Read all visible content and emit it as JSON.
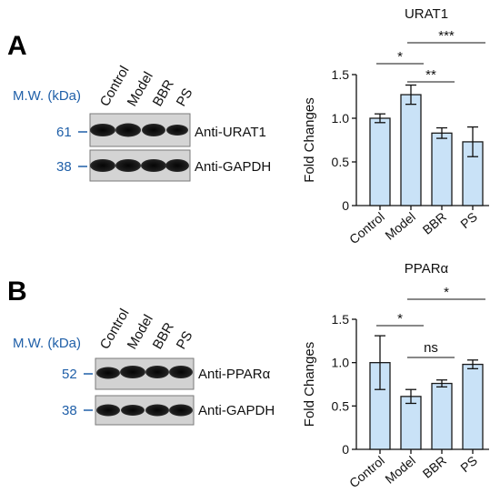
{
  "panels": [
    {
      "letter": "A",
      "blot": {
        "mw_label": "M.W. (kDa)",
        "lanes": [
          "Control",
          "Model",
          "BBR",
          "PS"
        ],
        "rows": [
          {
            "mw": "61",
            "antibody": "Anti-URAT1"
          },
          {
            "mw": "38",
            "antibody": "Anti-GAPDH"
          }
        ]
      }
    },
    {
      "letter": "B",
      "blot": {
        "mw_label": "M.W. (kDa)",
        "lanes": [
          "Control",
          "Model",
          "BBR",
          "PS"
        ],
        "rows": [
          {
            "mw": "52",
            "antibody": "Anti-PPARα"
          },
          {
            "mw": "38",
            "antibody": "Anti-GAPDH"
          }
        ]
      }
    }
  ],
  "colors": {
    "bar_fill": "#c9e2f7",
    "bar_stroke": "#1a1a1a",
    "mw_text": "#1f5fa8"
  },
  "chart_data": [
    {
      "type": "bar",
      "title": "URAT1",
      "ylabel": "Fold Changes",
      "categories": [
        "Control",
        "Model",
        "BBR",
        "PS"
      ],
      "values": [
        1.0,
        1.27,
        0.83,
        0.73
      ],
      "errors": [
        0.05,
        0.11,
        0.06,
        0.17
      ],
      "ylim": [
        0,
        1.5
      ],
      "yticks": [
        "0",
        "0.5",
        "1.0",
        "1.5"
      ],
      "significance": [
        {
          "from": "Control",
          "to": "Model",
          "label": "*"
        },
        {
          "from": "Model",
          "to": "BBR",
          "label": "**"
        },
        {
          "from": "Model",
          "to": "PS",
          "label": "***"
        }
      ]
    },
    {
      "type": "bar",
      "title": "PPARα",
      "ylabel": "Fold Changes",
      "categories": [
        "Control",
        "Model",
        "BBR",
        "PS"
      ],
      "values": [
        1.0,
        0.61,
        0.76,
        0.98
      ],
      "errors": [
        0.31,
        0.08,
        0.04,
        0.05
      ],
      "ylim": [
        0,
        1.5
      ],
      "yticks": [
        "0",
        "0.5",
        "1.0",
        "1.5"
      ],
      "significance": [
        {
          "from": "Control",
          "to": "Model",
          "label": "*"
        },
        {
          "from": "Model",
          "to": "BBR",
          "label": "ns"
        },
        {
          "from": "Model",
          "to": "PS",
          "label": "*"
        }
      ]
    }
  ]
}
